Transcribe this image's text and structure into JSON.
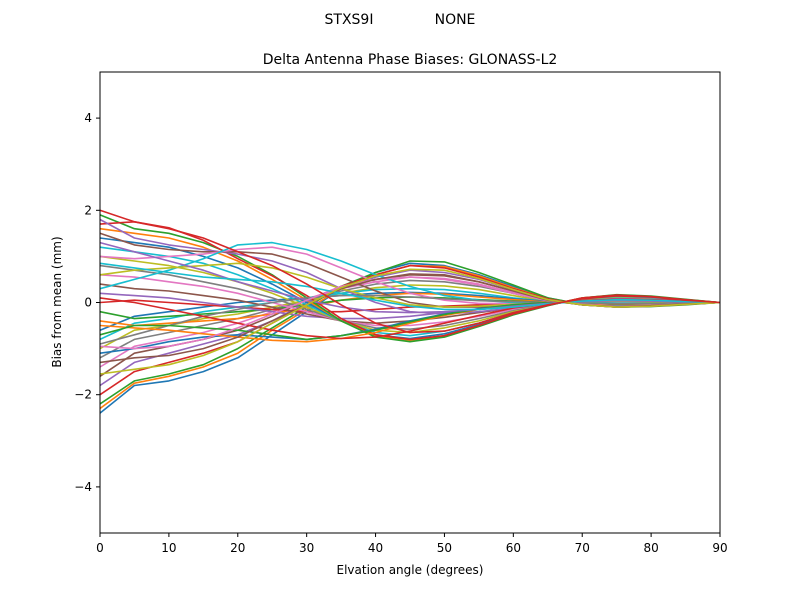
{
  "header": {
    "station": "STXS9I",
    "radome": "NONE"
  },
  "chart_data": {
    "type": "line",
    "title": "Delta Antenna Phase Biases: GLONASS-L2",
    "xlabel": "Elvation angle (degrees)",
    "ylabel": "Bias from mean (mm)",
    "xlim": [
      0,
      90
    ],
    "ylim": [
      -5,
      5
    ],
    "xticks": [
      0,
      10,
      20,
      30,
      40,
      50,
      60,
      70,
      80,
      90
    ],
    "yticks": [
      -4,
      -2,
      0,
      2,
      4
    ],
    "grid": false,
    "legend": "none",
    "x": [
      0,
      5,
      10,
      15,
      20,
      25,
      30,
      35,
      40,
      45,
      50,
      55,
      60,
      65,
      70,
      75,
      80,
      85,
      90
    ],
    "series": [
      {
        "color": "#1f77b4",
        "values": [
          -2.4,
          -1.8,
          -1.7,
          -1.5,
          -1.2,
          -0.7,
          -0.2,
          0.3,
          0.65,
          0.85,
          0.8,
          0.6,
          0.35,
          0.1,
          -0.05,
          -0.1,
          -0.08,
          -0.04,
          0.0
        ]
      },
      {
        "color": "#ff7f0e",
        "values": [
          -2.3,
          -1.75,
          -1.6,
          -1.4,
          -1.1,
          -0.6,
          -0.15,
          0.3,
          0.6,
          0.8,
          0.78,
          0.58,
          0.32,
          0.08,
          -0.05,
          -0.1,
          -0.08,
          -0.04,
          0.0
        ]
      },
      {
        "color": "#2ca02c",
        "values": [
          -2.2,
          -1.7,
          -1.55,
          -1.35,
          -1.0,
          -0.55,
          -0.1,
          0.35,
          0.65,
          0.9,
          0.88,
          0.65,
          0.38,
          0.1,
          -0.04,
          -0.1,
          -0.09,
          -0.05,
          0.0
        ]
      },
      {
        "color": "#d62728",
        "values": [
          -2.0,
          -1.5,
          -1.3,
          -1.1,
          -0.85,
          -0.45,
          -0.05,
          0.35,
          0.6,
          0.8,
          0.75,
          0.55,
          0.3,
          0.08,
          -0.05,
          -0.1,
          -0.08,
          -0.04,
          0.0
        ]
      },
      {
        "color": "#9467bd",
        "values": [
          -1.8,
          -1.3,
          -1.1,
          -0.9,
          -0.7,
          -0.4,
          0.0,
          0.3,
          0.55,
          0.7,
          0.65,
          0.5,
          0.28,
          0.06,
          -0.05,
          -0.1,
          -0.08,
          -0.04,
          0.0
        ]
      },
      {
        "color": "#8c564b",
        "values": [
          -1.6,
          -1.1,
          -0.95,
          -0.8,
          -0.6,
          -0.3,
          0.05,
          0.35,
          0.5,
          0.6,
          0.58,
          0.45,
          0.25,
          0.05,
          -0.05,
          -0.08,
          -0.07,
          -0.04,
          0.0
        ]
      },
      {
        "color": "#e377c2",
        "values": [
          -1.4,
          -0.95,
          -0.8,
          -0.65,
          -0.45,
          -0.2,
          0.08,
          0.3,
          0.45,
          0.55,
          0.52,
          0.4,
          0.22,
          0.04,
          -0.04,
          -0.08,
          -0.07,
          -0.03,
          0.0
        ]
      },
      {
        "color": "#7f7f7f",
        "values": [
          -1.2,
          -0.8,
          -0.65,
          -0.5,
          -0.35,
          -0.15,
          0.05,
          0.25,
          0.4,
          0.48,
          0.45,
          0.35,
          0.2,
          0.03,
          -0.04,
          -0.07,
          -0.06,
          -0.03,
          0.0
        ]
      },
      {
        "color": "#bcbd22",
        "values": [
          -1.0,
          -0.6,
          -0.5,
          -0.35,
          -0.25,
          -0.1,
          0.05,
          0.2,
          0.32,
          0.38,
          0.36,
          0.28,
          0.15,
          0.02,
          -0.03,
          -0.06,
          -0.05,
          -0.02,
          0.0
        ]
      },
      {
        "color": "#17becf",
        "values": [
          -0.8,
          -0.45,
          -0.35,
          -0.2,
          -0.1,
          0.0,
          0.1,
          0.2,
          0.28,
          0.3,
          0.28,
          0.2,
          0.1,
          0.02,
          -0.02,
          -0.05,
          -0.04,
          -0.02,
          0.0
        ]
      },
      {
        "color": "#1f77b4",
        "values": [
          -0.6,
          -0.3,
          -0.2,
          -0.1,
          0.0,
          0.05,
          0.1,
          0.15,
          0.2,
          0.22,
          0.2,
          0.15,
          0.08,
          0.02,
          -0.02,
          -0.04,
          -0.03,
          -0.01,
          0.0
        ]
      },
      {
        "color": "#ff7f0e",
        "values": [
          -0.4,
          -0.5,
          -0.45,
          -0.4,
          -0.35,
          -0.25,
          -0.1,
          0.05,
          0.15,
          0.2,
          0.18,
          0.12,
          0.06,
          0.01,
          -0.02,
          -0.03,
          -0.03,
          -0.01,
          0.0
        ]
      },
      {
        "color": "#2ca02c",
        "values": [
          -0.2,
          -0.35,
          -0.3,
          -0.25,
          -0.2,
          -0.15,
          -0.05,
          0.05,
          0.1,
          0.12,
          0.1,
          0.06,
          0.03,
          0.0,
          -0.01,
          -0.02,
          -0.02,
          -0.01,
          0.0
        ]
      },
      {
        "color": "#d62728",
        "values": [
          0.0,
          0.05,
          0.0,
          -0.05,
          -0.1,
          -0.15,
          -0.2,
          -0.2,
          -0.15,
          -0.1,
          -0.08,
          -0.05,
          -0.02,
          0.0,
          0.02,
          0.03,
          0.02,
          0.01,
          0.0
        ]
      },
      {
        "color": "#9467bd",
        "values": [
          0.2,
          0.15,
          0.1,
          0.0,
          -0.1,
          -0.2,
          -0.3,
          -0.35,
          -0.35,
          -0.3,
          -0.22,
          -0.15,
          -0.08,
          -0.02,
          0.03,
          0.05,
          0.04,
          0.02,
          0.0
        ]
      },
      {
        "color": "#8c564b",
        "values": [
          0.4,
          0.3,
          0.25,
          0.15,
          0.05,
          -0.1,
          -0.25,
          -0.4,
          -0.45,
          -0.4,
          -0.32,
          -0.22,
          -0.12,
          -0.03,
          0.04,
          0.07,
          0.06,
          0.03,
          0.0
        ]
      },
      {
        "color": "#e377c2",
        "values": [
          0.6,
          0.55,
          0.45,
          0.35,
          0.2,
          0.0,
          -0.2,
          -0.4,
          -0.5,
          -0.5,
          -0.42,
          -0.3,
          -0.15,
          -0.03,
          0.05,
          0.09,
          0.07,
          0.03,
          0.0
        ]
      },
      {
        "color": "#7f7f7f",
        "values": [
          0.8,
          0.7,
          0.6,
          0.45,
          0.3,
          0.1,
          -0.15,
          -0.4,
          -0.55,
          -0.58,
          -0.5,
          -0.35,
          -0.18,
          -0.04,
          0.06,
          0.1,
          0.08,
          0.04,
          0.0
        ]
      },
      {
        "color": "#bcbd22",
        "values": [
          1.0,
          0.9,
          0.8,
          0.65,
          0.45,
          0.2,
          -0.1,
          -0.4,
          -0.6,
          -0.65,
          -0.55,
          -0.4,
          -0.2,
          -0.05,
          0.07,
          0.12,
          0.1,
          0.05,
          0.0
        ]
      },
      {
        "color": "#17becf",
        "values": [
          1.2,
          1.1,
          1.0,
          0.85,
          0.6,
          0.3,
          -0.05,
          -0.4,
          -0.65,
          -0.72,
          -0.62,
          -0.45,
          -0.22,
          -0.05,
          0.08,
          0.13,
          0.11,
          0.05,
          0.0
        ]
      },
      {
        "color": "#1f77b4",
        "values": [
          1.4,
          1.3,
          1.2,
          1.0,
          0.75,
          0.4,
          0.0,
          -0.4,
          -0.7,
          -0.78,
          -0.68,
          -0.48,
          -0.25,
          -0.06,
          0.09,
          0.15,
          0.12,
          0.06,
          0.0
        ]
      },
      {
        "color": "#ff7f0e",
        "values": [
          1.6,
          1.5,
          1.4,
          1.2,
          0.9,
          0.5,
          0.05,
          -0.4,
          -0.72,
          -0.82,
          -0.72,
          -0.5,
          -0.26,
          -0.06,
          0.1,
          0.16,
          0.13,
          0.06,
          0.0
        ]
      },
      {
        "color": "#2ca02c",
        "values": [
          1.9,
          1.6,
          1.5,
          1.3,
          1.0,
          0.6,
          0.1,
          -0.4,
          -0.75,
          -0.85,
          -0.75,
          -0.52,
          -0.27,
          -0.07,
          0.1,
          0.17,
          0.14,
          0.07,
          0.0
        ]
      },
      {
        "color": "#d62728",
        "values": [
          1.7,
          1.75,
          1.62,
          1.35,
          0.95,
          0.58,
          0.15,
          -0.35,
          -0.7,
          -0.8,
          -0.72,
          -0.5,
          -0.25,
          -0.06,
          0.1,
          0.16,
          0.13,
          0.06,
          0.0
        ]
      },
      {
        "color": "#9467bd",
        "values": [
          1.8,
          1.4,
          1.25,
          1.15,
          1.05,
          0.9,
          0.65,
          0.3,
          0.0,
          -0.2,
          -0.25,
          -0.2,
          -0.12,
          -0.03,
          0.04,
          0.08,
          0.07,
          0.03,
          0.0
        ]
      },
      {
        "color": "#8c564b",
        "values": [
          1.5,
          1.25,
          1.15,
          1.1,
          1.1,
          1.05,
          0.85,
          0.55,
          0.25,
          0.0,
          -0.1,
          -0.1,
          -0.05,
          0.0,
          0.03,
          0.05,
          0.04,
          0.02,
          0.0
        ]
      },
      {
        "color": "#e377c2",
        "values": [
          1.0,
          0.95,
          1.0,
          1.05,
          1.15,
          1.2,
          1.05,
          0.75,
          0.45,
          0.2,
          0.05,
          -0.02,
          -0.02,
          0.0,
          0.02,
          0.04,
          0.03,
          0.01,
          0.0
        ]
      },
      {
        "color": "#17becf",
        "values": [
          0.3,
          0.5,
          0.7,
          0.95,
          1.25,
          1.3,
          1.15,
          0.9,
          0.6,
          0.35,
          0.15,
          0.05,
          0.0,
          0.0,
          0.01,
          0.02,
          0.02,
          0.01,
          0.0
        ]
      },
      {
        "color": "#bcbd22",
        "values": [
          0.6,
          0.7,
          0.75,
          0.8,
          0.85,
          0.75,
          0.55,
          0.3,
          0.1,
          -0.05,
          -0.1,
          -0.08,
          -0.04,
          0.0,
          0.02,
          0.03,
          0.02,
          0.01,
          0.0
        ]
      },
      {
        "color": "#7f7f7f",
        "values": [
          -0.9,
          -0.7,
          -0.5,
          -0.3,
          -0.15,
          0.0,
          0.1,
          0.15,
          0.15,
          0.12,
          0.08,
          0.04,
          0.02,
          0.0,
          -0.01,
          -0.02,
          -0.02,
          -0.01,
          0.0
        ]
      },
      {
        "color": "#1f77b4",
        "values": [
          -1.1,
          -1.0,
          -0.85,
          -0.75,
          -0.7,
          -0.75,
          -0.8,
          -0.72,
          -0.58,
          -0.4,
          -0.25,
          -0.13,
          -0.05,
          0.0,
          0.03,
          0.05,
          0.04,
          0.02,
          0.0
        ]
      },
      {
        "color": "#ff7f0e",
        "values": [
          -0.5,
          -0.55,
          -0.6,
          -0.68,
          -0.75,
          -0.82,
          -0.85,
          -0.78,
          -0.65,
          -0.45,
          -0.28,
          -0.15,
          -0.06,
          0.0,
          0.03,
          0.05,
          0.04,
          0.02,
          0.0
        ]
      },
      {
        "color": "#2ca02c",
        "values": [
          -0.7,
          -0.5,
          -0.5,
          -0.55,
          -0.6,
          -0.7,
          -0.8,
          -0.72,
          -0.6,
          -0.42,
          -0.26,
          -0.14,
          -0.05,
          0.0,
          0.03,
          0.05,
          0.04,
          0.02,
          0.0
        ]
      },
      {
        "color": "#d62728",
        "values": [
          0.1,
          0.0,
          -0.15,
          -0.3,
          -0.45,
          -0.6,
          -0.72,
          -0.78,
          -0.75,
          -0.62,
          -0.45,
          -0.28,
          -0.12,
          -0.02,
          0.04,
          0.07,
          0.06,
          0.03,
          0.0
        ]
      },
      {
        "color": "#9467bd",
        "values": [
          1.3,
          1.1,
          0.9,
          0.7,
          0.45,
          0.25,
          0.05,
          -0.1,
          -0.2,
          -0.22,
          -0.2,
          -0.15,
          -0.08,
          -0.02,
          0.02,
          0.04,
          0.03,
          0.01,
          0.0
        ]
      },
      {
        "color": "#e377c2",
        "values": [
          -0.95,
          -1.0,
          -0.95,
          -0.8,
          -0.55,
          -0.25,
          0.05,
          0.35,
          0.5,
          0.55,
          0.5,
          0.38,
          0.2,
          0.04,
          -0.04,
          -0.08,
          -0.06,
          -0.03,
          0.0
        ]
      },
      {
        "color": "#8c564b",
        "values": [
          -1.3,
          -1.2,
          -1.15,
          -1.0,
          -0.75,
          -0.4,
          -0.05,
          0.3,
          0.5,
          0.62,
          0.6,
          0.45,
          0.25,
          0.05,
          -0.05,
          -0.09,
          -0.07,
          -0.03,
          0.0
        ]
      },
      {
        "color": "#17becf",
        "values": [
          0.85,
          0.75,
          0.65,
          0.55,
          0.5,
          0.45,
          0.35,
          0.2,
          0.05,
          -0.08,
          -0.15,
          -0.15,
          -0.1,
          -0.03,
          0.03,
          0.06,
          0.05,
          0.02,
          0.0
        ]
      },
      {
        "color": "#bcbd22",
        "values": [
          -1.55,
          -1.45,
          -1.35,
          -1.15,
          -0.85,
          -0.45,
          -0.05,
          0.32,
          0.58,
          0.72,
          0.7,
          0.52,
          0.28,
          0.06,
          -0.05,
          -0.1,
          -0.08,
          -0.04,
          0.0
        ]
      },
      {
        "color": "#d62728",
        "values": [
          2.0,
          1.75,
          1.6,
          1.4,
          1.1,
          0.8,
          0.4,
          -0.05,
          -0.45,
          -0.65,
          -0.62,
          -0.45,
          -0.22,
          -0.05,
          0.08,
          0.14,
          0.12,
          0.05,
          0.0
        ]
      }
    ]
  }
}
